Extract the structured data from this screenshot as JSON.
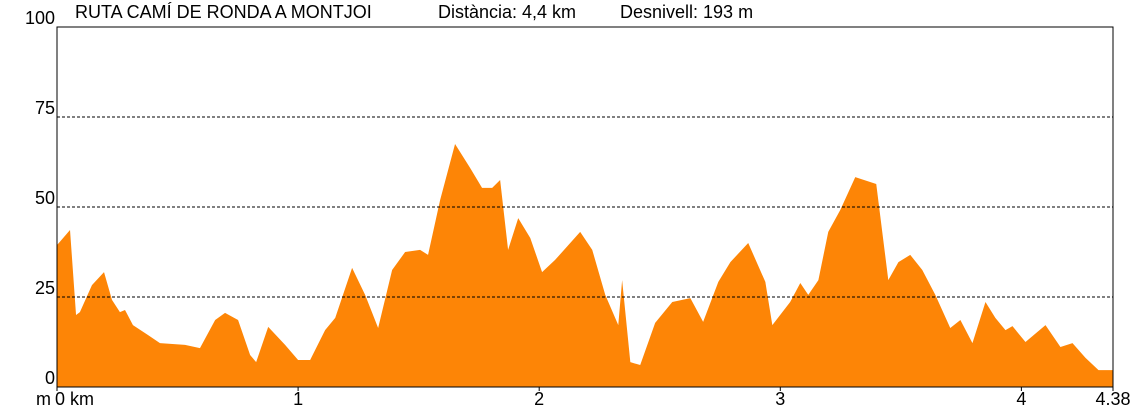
{
  "chart_data": {
    "type": "area",
    "title": "RUTA CAMÍ DE RONDA A MONTJOI",
    "subtitle": "Distància: 4,4 km",
    "annotation": "Desnivell: 193 m",
    "y_label": "m",
    "color": "#fd8506",
    "grid": true,
    "xlim": [
      0,
      4.38
    ],
    "ylim": [
      0,
      100
    ],
    "xticks": [
      {
        "value": 0,
        "label": "0 km"
      },
      1,
      2,
      3,
      4,
      4.38
    ],
    "yticks": [
      0,
      25,
      50,
      75,
      100
    ],
    "x": [
      0,
      0.054,
      0.079,
      0.095,
      0.145,
      0.195,
      0.228,
      0.261,
      0.282,
      0.315,
      0.378,
      0.427,
      0.531,
      0.593,
      0.656,
      0.697,
      0.751,
      0.801,
      0.826,
      0.876,
      0.946,
      1.0,
      1.05,
      1.112,
      1.154,
      1.224,
      1.278,
      1.332,
      1.39,
      1.444,
      1.506,
      1.539,
      1.589,
      1.651,
      1.714,
      1.763,
      1.805,
      1.838,
      1.871,
      1.913,
      1.963,
      2.012,
      2.066,
      2.17,
      2.22,
      2.274,
      2.328,
      2.344,
      2.378,
      2.419,
      2.481,
      2.552,
      2.627,
      2.68,
      2.743,
      2.793,
      2.867,
      2.938,
      2.967,
      3.041,
      3.083,
      3.116,
      3.158,
      3.199,
      3.249,
      3.311,
      3.398,
      3.448,
      3.49,
      3.539,
      3.589,
      3.643,
      3.705,
      3.747,
      3.797,
      3.851,
      3.892,
      3.934,
      3.963,
      4.017,
      4.1,
      4.162,
      4.212,
      4.266,
      4.32,
      4.38
    ],
    "values": [
      39.4,
      43.6,
      20,
      20.8,
      28.3,
      31.9,
      24.2,
      20.8,
      21.4,
      17.2,
      14.4,
      12.2,
      11.7,
      10.8,
      18.6,
      20.6,
      18.6,
      8.9,
      6.9,
      16.7,
      11.7,
      7.5,
      7.5,
      15.8,
      19.2,
      33.1,
      25.6,
      16.4,
      32.5,
      37.5,
      38.1,
      36.7,
      51.9,
      67.5,
      60.8,
      55.3,
      55.3,
      57.5,
      38.1,
      46.9,
      41.4,
      31.9,
      35.3,
      43.1,
      38.1,
      25.6,
      17.2,
      29.7,
      6.9,
      6.1,
      17.8,
      23.6,
      24.7,
      18.1,
      29.2,
      34.7,
      40,
      29.2,
      17.2,
      23.6,
      28.9,
      25.6,
      29.7,
      43.1,
      49.2,
      58.3,
      56.4,
      29.7,
      34.7,
      36.7,
      32.5,
      25.6,
      16.4,
      18.6,
      12.2,
      23.6,
      19.2,
      15.8,
      16.9,
      12.5,
      17.2,
      11.1,
      12.2,
      8.1,
      4.7,
      4.7
    ]
  }
}
